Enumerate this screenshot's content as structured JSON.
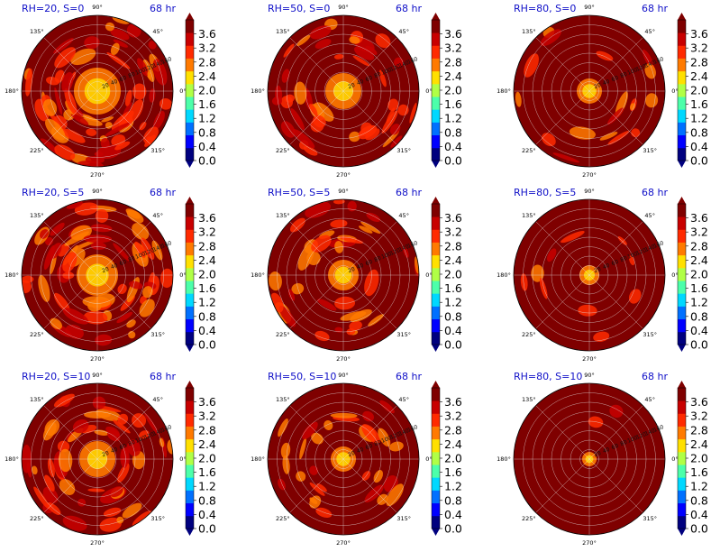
{
  "figure": {
    "time_label": "68 hr"
  },
  "colors": {
    "text_title": "#1010c8",
    "polar_background": "#7f0000",
    "grid": "#e8e8e8",
    "colormap": [
      "#00007f",
      "#0000ff",
      "#0070ff",
      "#00d8ff",
      "#4cffaa",
      "#b0ff46",
      "#ffe000",
      "#ff7a00",
      "#ff2a00",
      "#c80000",
      "#7f0000"
    ]
  },
  "panels": [
    {
      "title": "RH=20, S=0",
      "time": "68 hr"
    },
    {
      "title": "RH=50, S=0",
      "time": "68 hr"
    },
    {
      "title": "RH=80, S=0",
      "time": "68 hr"
    },
    {
      "title": "RH=20, S=5",
      "time": "68 hr"
    },
    {
      "title": "RH=50, S=5",
      "time": "68 hr"
    },
    {
      "title": "RH=80, S=5",
      "time": "68 hr"
    },
    {
      "title": "RH=20, S=10",
      "time": "68 hr"
    },
    {
      "title": "RH=50, S=10",
      "time": "68 hr"
    },
    {
      "title": "RH=80, S=10",
      "time": "68 hr"
    }
  ],
  "polar_axes": {
    "angle_labels": [
      "0°",
      "45°",
      "90°",
      "135°",
      "180°",
      "225°",
      "270°",
      "315°"
    ],
    "radial_labels": [
      "20",
      "40",
      "60",
      "80",
      "100",
      "120",
      "140",
      "160"
    ]
  },
  "colorbar": {
    "ticks": [
      "0.0",
      "0.4",
      "0.8",
      "1.2",
      "1.6",
      "2.0",
      "2.4",
      "2.8",
      "3.2",
      "3.6"
    ],
    "min": 0.0,
    "max": 4.0
  },
  "chart_data": [
    {
      "type": "heatmap",
      "projection": "polar",
      "title": "RH=20, S=0",
      "subtitle": "68 hr",
      "zlim": [
        0,
        4.0
      ]
    },
    {
      "type": "heatmap",
      "projection": "polar",
      "title": "RH=50, S=0",
      "subtitle": "68 hr",
      "zlim": [
        0,
        4.0
      ]
    },
    {
      "type": "heatmap",
      "projection": "polar",
      "title": "RH=80, S=0",
      "subtitle": "68 hr",
      "zlim": [
        0,
        4.0
      ]
    },
    {
      "type": "heatmap",
      "projection": "polar",
      "title": "RH=20, S=5",
      "subtitle": "68 hr",
      "zlim": [
        0,
        4.0
      ]
    },
    {
      "type": "heatmap",
      "projection": "polar",
      "title": "RH=50, S=5",
      "subtitle": "68 hr",
      "zlim": [
        0,
        4.0
      ]
    },
    {
      "type": "heatmap",
      "projection": "polar",
      "title": "RH=80, S=5",
      "subtitle": "68 hr",
      "zlim": [
        0,
        4.0
      ]
    },
    {
      "type": "heatmap",
      "projection": "polar",
      "title": "RH=20, S=10",
      "subtitle": "68 hr",
      "zlim": [
        0,
        4.0
      ]
    },
    {
      "type": "heatmap",
      "projection": "polar",
      "title": "RH=50, S=10",
      "subtitle": "68 hr",
      "zlim": [
        0,
        4.0
      ]
    },
    {
      "type": "heatmap",
      "projection": "polar",
      "title": "RH=80, S=10",
      "subtitle": "68 hr",
      "zlim": [
        0,
        4.0
      ]
    }
  ]
}
